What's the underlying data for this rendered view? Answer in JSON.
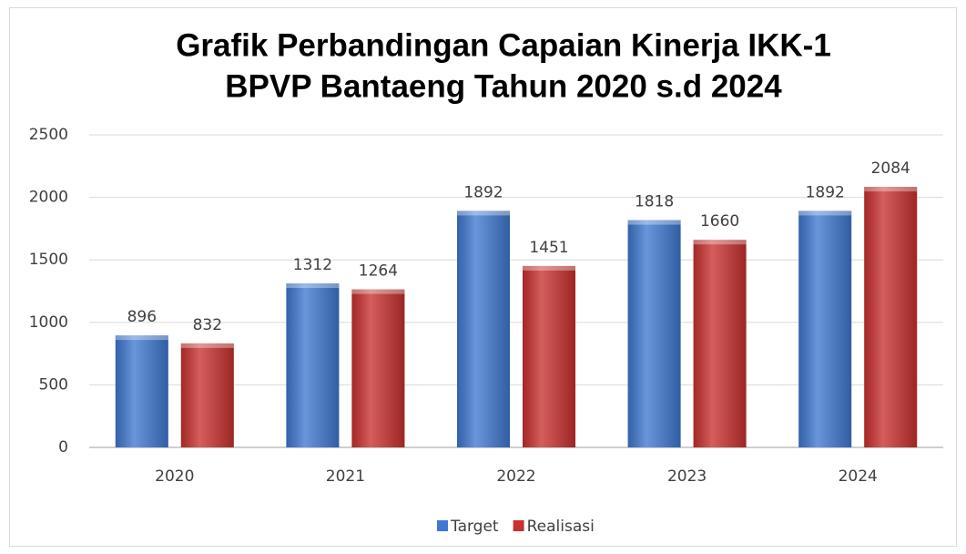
{
  "chart_data": {
    "type": "bar",
    "title": [
      "Grafik Perbandingan Capaian Kinerja IKK-1",
      "BPVP Bantaeng Tahun 2020 s.d 2024"
    ],
    "categories": [
      "2020",
      "2021",
      "2022",
      "2023",
      "2024"
    ],
    "series": [
      {
        "name": "Target",
        "color": "#3f78d0",
        "values": [
          896,
          1312,
          1892,
          1818,
          1892
        ]
      },
      {
        "name": "Realisasi",
        "color": "#c8312f",
        "values": [
          832,
          1264,
          1451,
          1660,
          2084
        ]
      }
    ],
    "ylim": [
      0,
      2500
    ],
    "yticks": [
      0,
      500,
      1000,
      1500,
      2000,
      2500
    ],
    "grid": true,
    "legend": "bottom"
  }
}
